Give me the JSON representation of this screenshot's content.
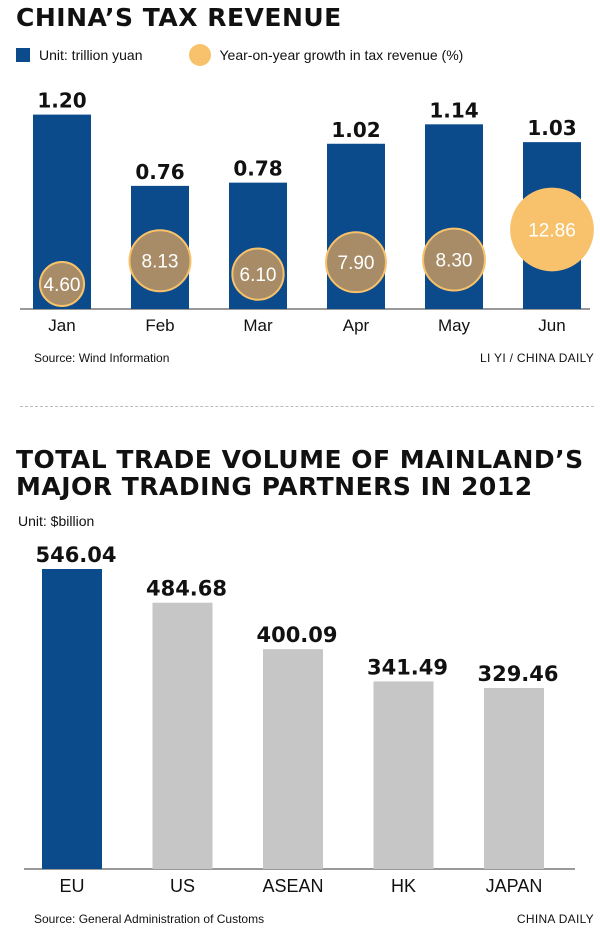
{
  "chart_data": [
    {
      "type": "bar",
      "title": "CHINA’S TAX REVENUE",
      "categories": [
        "Jan",
        "Feb",
        "Mar",
        "Apr",
        "May",
        "Jun"
      ],
      "series": [
        {
          "name": "Unit: trillion yuan",
          "values": [
            1.2,
            0.76,
            0.78,
            1.02,
            1.14,
            1.03
          ],
          "labels": [
            "1.20",
            "0.76",
            "0.78",
            "1.02",
            "1.14",
            "1.03"
          ]
        },
        {
          "name": "Year-on-year growth in tax revenue (%)",
          "values": [
            4.6,
            8.13,
            6.1,
            7.9,
            8.3,
            12.86
          ],
          "labels": [
            "4.60",
            "8.13",
            "6.10",
            "7.90",
            "8.30",
            "12.86"
          ]
        }
      ],
      "colors": {
        "bar": "#0b4a8b",
        "bubble": "#f7c26b",
        "bubble_overlap": "#a78c67",
        "bubble_text": "#ffffff"
      },
      "source": "Source: Wind Information",
      "credit": "LI YI / CHINA DAILY"
    },
    {
      "type": "bar",
      "title": "TOTAL TRADE VOLUME OF MAINLAND’S\nMAJOR TRADING PARTNERS IN 2012",
      "unit": "Unit: $billion",
      "categories": [
        "EU",
        "US",
        "ASEAN",
        "HK",
        "JAPAN"
      ],
      "values": [
        546.04,
        484.68,
        400.09,
        341.49,
        329.46
      ],
      "labels": [
        "546.04",
        "484.68",
        "400.09",
        "341.49",
        "329.46"
      ],
      "colors": {
        "highlight": "#0b4a8b",
        "default": "#c6c6c6"
      },
      "source": "Source: General Administration of Customs",
      "credit": "CHINA DAILY"
    }
  ]
}
